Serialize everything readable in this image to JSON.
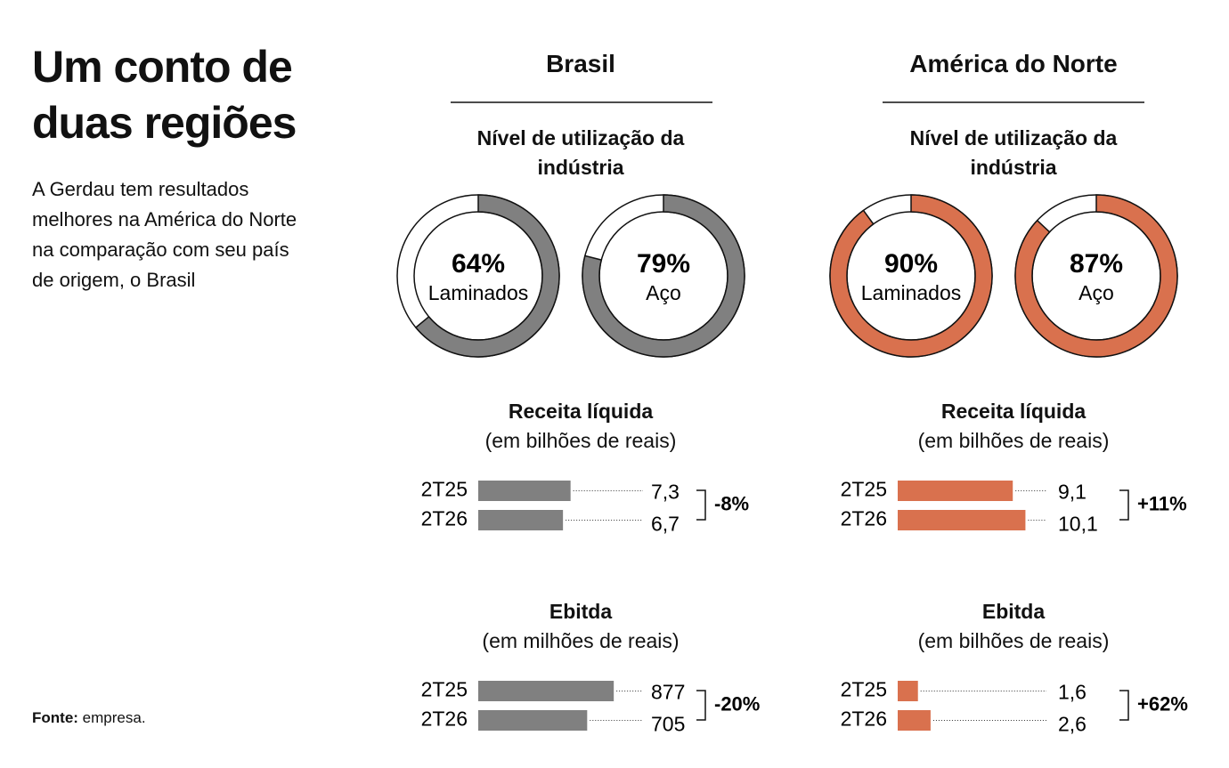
{
  "title": "Um conto de duas regiões",
  "description": "A Gerdau tem resultados melhores na América do Norte na comparação com seu país de origem, o Brasil",
  "source_label": "Fonte:",
  "source": "empresa.",
  "regions": [
    "Brasil",
    "América do Norte"
  ],
  "chart_data": [
    {
      "type": "donut",
      "title": "Nível de utilização da indústria",
      "categories": [
        "Laminados",
        "Aço"
      ],
      "values": [
        64,
        79
      ],
      "value_labels": [
        "64%",
        "79%"
      ],
      "color": "#808080"
    },
    {
      "type": "donut",
      "title": "Nível de utilização da indústria",
      "categories": [
        "Laminados",
        "Aço"
      ],
      "values": [
        90,
        87
      ],
      "value_labels": [
        "90%",
        "87%"
      ],
      "color": "#d9714e"
    },
    {
      "type": "bar",
      "title": "Receita líquida",
      "subtitle": "(em bilhões de reais)",
      "categories": [
        "2T25",
        "2T26"
      ],
      "values": [
        7.3,
        6.7
      ],
      "value_labels": [
        "7,3",
        "6,7"
      ],
      "change_label": "-8%",
      "color": "#808080"
    },
    {
      "type": "bar",
      "title": "Receita líquida",
      "subtitle": "(em bilhões de reais)",
      "categories": [
        "2T25",
        "2T26"
      ],
      "values": [
        9.1,
        10.1
      ],
      "value_labels": [
        "9,1",
        "10,1"
      ],
      "change_label": "+11%",
      "color": "#d9714e"
    },
    {
      "type": "bar",
      "title": "Ebitda",
      "subtitle": "(em milhões de reais)",
      "categories": [
        "2T25",
        "2T26"
      ],
      "values": [
        877,
        705
      ],
      "value_labels": [
        "877",
        "705"
      ],
      "change_label": "-20%",
      "color": "#808080"
    },
    {
      "type": "bar",
      "title": "Ebitda",
      "subtitle": "(em bilhões de reais)",
      "categories": [
        "2T25",
        "2T26"
      ],
      "values": [
        1.6,
        2.6
      ],
      "value_labels": [
        "1,6",
        "2,6"
      ],
      "change_label": "+62%",
      "color": "#d9714e"
    }
  ]
}
